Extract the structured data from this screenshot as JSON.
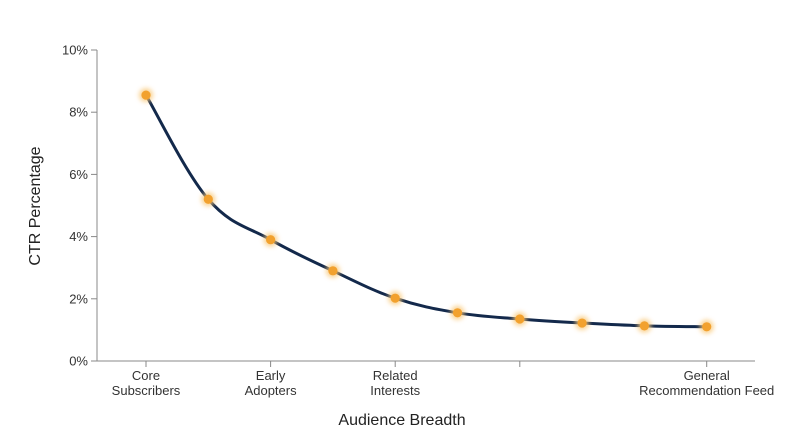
{
  "chart_data": {
    "type": "line",
    "title": "",
    "xlabel": "Audience Breadth",
    "ylabel": "CTR Percentage",
    "ylim": [
      0,
      10
    ],
    "y_ticks": [
      "0%",
      "2%",
      "4%",
      "6%",
      "8%",
      "10%"
    ],
    "x_tick_labels": [
      [
        "Core",
        "Subscribers"
      ],
      [],
      [
        "Early",
        "Adopters"
      ],
      [],
      [
        "Related",
        "Interests"
      ],
      [],
      [],
      [],
      [],
      [
        "General",
        "Recommendation Feed"
      ]
    ],
    "x_tick_marks": [
      0,
      2,
      4,
      6,
      9
    ],
    "series": [
      {
        "values": [
          8.55,
          5.2,
          3.9,
          2.9,
          2.02,
          1.55,
          1.35,
          1.22,
          1.13,
          1.1
        ]
      }
    ],
    "grid": false,
    "legend": "none",
    "colors": {
      "line": "#13294b",
      "marker": "#f2a12e",
      "marker_glow": "#f9c97a",
      "axis": "#888888"
    }
  }
}
